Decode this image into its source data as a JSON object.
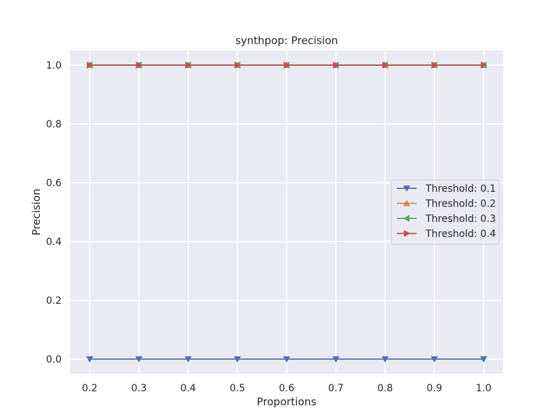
{
  "chart_data": {
    "type": "line",
    "title": "synthpop: Precision",
    "xlabel": "Proportions",
    "ylabel": "Precision",
    "x": [
      0.2,
      0.3,
      0.4,
      0.5,
      0.6,
      0.7,
      0.8,
      0.9,
      1.0
    ],
    "xlim": [
      0.16,
      1.04
    ],
    "ylim": [
      -0.05,
      1.05
    ],
    "x_ticks": [
      "0.2",
      "0.3",
      "0.4",
      "0.5",
      "0.6",
      "0.7",
      "0.8",
      "0.9",
      "1.0"
    ],
    "y_ticks": [
      "0.0",
      "0.2",
      "0.4",
      "0.6",
      "0.8",
      "1.0"
    ],
    "grid": true,
    "legend_position": "center-right",
    "series": [
      {
        "name": "Threshold: 0.1",
        "color": "#4c72b0",
        "marker": "triangle-down",
        "values": [
          0,
          0,
          0,
          0,
          0,
          0,
          0,
          0,
          0
        ]
      },
      {
        "name": "Threshold: 0.2",
        "color": "#dd8452",
        "marker": "triangle-up",
        "values": [
          1,
          1,
          1,
          1,
          1,
          1,
          1,
          1,
          1
        ]
      },
      {
        "name": "Threshold: 0.3",
        "color": "#55a868",
        "marker": "triangle-left",
        "values": [
          1,
          1,
          1,
          1,
          1,
          1,
          1,
          1,
          1
        ]
      },
      {
        "name": "Threshold: 0.4",
        "color": "#c44e52",
        "marker": "triangle-right",
        "values": [
          1,
          1,
          1,
          1,
          1,
          1,
          1,
          1,
          1
        ]
      }
    ]
  }
}
